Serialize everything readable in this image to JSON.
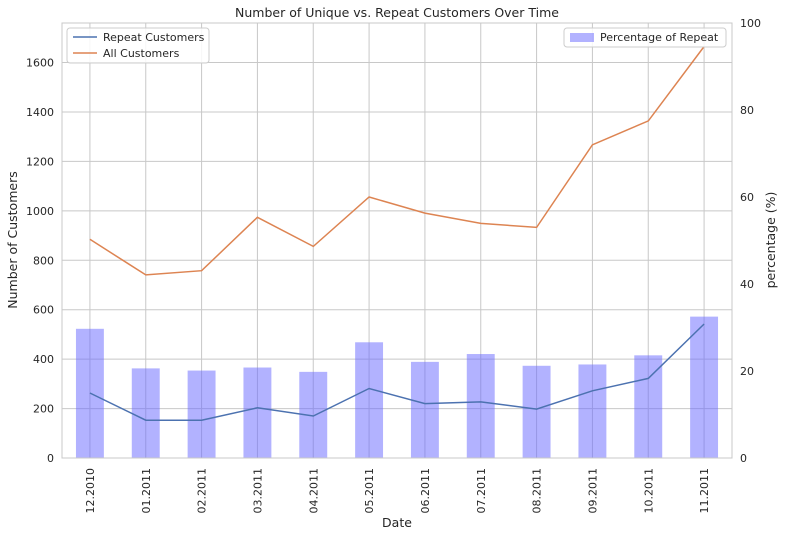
{
  "chart_data": {
    "type": "bar+line",
    "title": "Number of Unique vs. Repeat Customers Over Time",
    "xlabel": "Date",
    "ylabel_left": "Number of Customers",
    "ylabel_right": "percentage (%)",
    "categories": [
      "12.2010",
      "01.2011",
      "02.2011",
      "03.2011",
      "04.2011",
      "05.2011",
      "06.2011",
      "07.2011",
      "08.2011",
      "09.2011",
      "10.2011",
      "11.2011"
    ],
    "ylim_left": [
      0,
      1760
    ],
    "yticks_left": [
      "0",
      "200",
      "400",
      "600",
      "800",
      "1000",
      "1200",
      "1400",
      "1600"
    ],
    "ylim_right": [
      0,
      100
    ],
    "yticks_right": [
      "0",
      "20",
      "40",
      "60",
      "80",
      "100"
    ],
    "grid": true,
    "lines": [
      {
        "name": "Repeat Customers",
        "color": "#4c72b0",
        "values": [
          263,
          153,
          153,
          203,
          170,
          281,
          220,
          227,
          198,
          272,
          322,
          542
        ]
      },
      {
        "name": "All Customers",
        "color": "#dd8452",
        "values": [
          885,
          741,
          758,
          974,
          856,
          1056,
          991,
          949,
          933,
          1267,
          1364,
          1665
        ]
      }
    ],
    "bars": {
      "name": "Percentage of Repeat",
      "color": "#6666ff",
      "values": [
        29.7,
        20.6,
        20.1,
        20.8,
        19.8,
        26.6,
        22.1,
        23.9,
        21.2,
        21.5,
        23.6,
        32.5
      ]
    },
    "legend_left_placement": "upper left",
    "legend_right_placement": "upper right"
  }
}
